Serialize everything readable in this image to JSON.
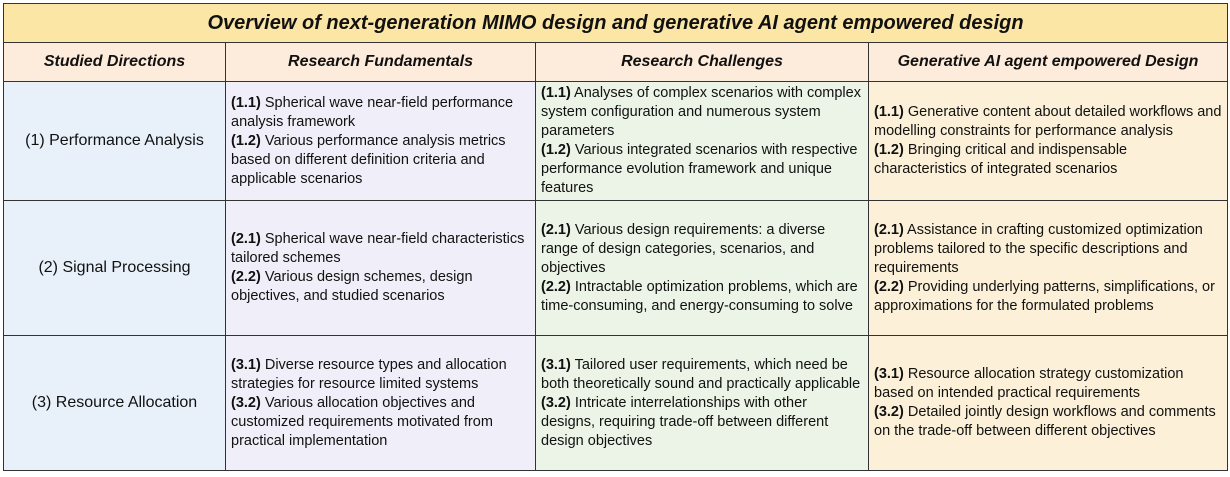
{
  "title": "Overview of next-generation MIMO design and generative AI agent empowered design",
  "headers": [
    "Studied Directions",
    "Research Fundamentals",
    "Research Challenges",
    "Generative AI agent empowered Design"
  ],
  "rows": [
    {
      "direction": "(1) Performance Analysis",
      "fundamentals": [
        {
          "code": "(1.1)",
          "text": " Spherical wave near-field performance analysis framework"
        },
        {
          "code": "(1.2)",
          "text": " Various performance analysis metrics based on different definition criteria and applicable scenarios"
        }
      ],
      "challenges": [
        {
          "code": "(1.1)",
          "text": " Analyses of complex scenarios with complex system configuration and numerous system parameters"
        },
        {
          "code": "(1.2)",
          "text": "  Various integrated scenarios with respective performance evolution framework and unique features"
        }
      ],
      "genai": [
        {
          "code": "(1.1)",
          "text": "  Generative content about detailed workflows and modelling constraints for performance analysis"
        },
        {
          "code": "(1.2)",
          "text": "  Bringing critical and indispensable characteristics of integrated scenarios"
        }
      ]
    },
    {
      "direction": "(2) Signal Processing",
      "fundamentals": [
        {
          "code": "(2.1)",
          "text": " Spherical wave near-field characteristics tailored schemes"
        },
        {
          "code": "(2.2)",
          "text": " Various design schemes, design objectives, and studied scenarios"
        }
      ],
      "challenges": [
        {
          "code": "(2.1)",
          "text": " Various design requirements: a diverse range of design categories, scenarios, and objectives"
        },
        {
          "code": "(2.2)",
          "text": " Intractable optimization problems, which are time-consuming, and energy-consuming to solve"
        }
      ],
      "genai": [
        {
          "code": "(2.1)",
          "text": " Assistance in crafting customized optimization problems tailored to the specific descriptions and requirements"
        },
        {
          "code": "(2.2)",
          "text": " Providing underlying patterns, simplifications, or approximations for the formulated problems"
        }
      ]
    },
    {
      "direction": "(3) Resource Allocation",
      "fundamentals": [
        {
          "code": "(3.1)",
          "text": " Diverse resource types and allocation strategies for resource limited systems"
        },
        {
          "code": "(3.2)",
          "text": " Various allocation objectives and customized requirements motivated from practical implementation"
        }
      ],
      "challenges": [
        {
          "code": "(3.1)",
          "text": " Tailored user requirements, which need be both theoretically sound and practically applicable"
        },
        {
          "code": "(3.2)",
          "text": " Intricate interrelationships with other designs, requiring trade-off between different design objectives"
        }
      ],
      "genai": [
        {
          "code": "(3.1)",
          "text": " Resource allocation strategy customization based on intended practical requirements"
        },
        {
          "code": "(3.2)",
          "text": "  Detailed jointly design  workflows and comments on the trade-off between different objectives"
        }
      ]
    }
  ]
}
